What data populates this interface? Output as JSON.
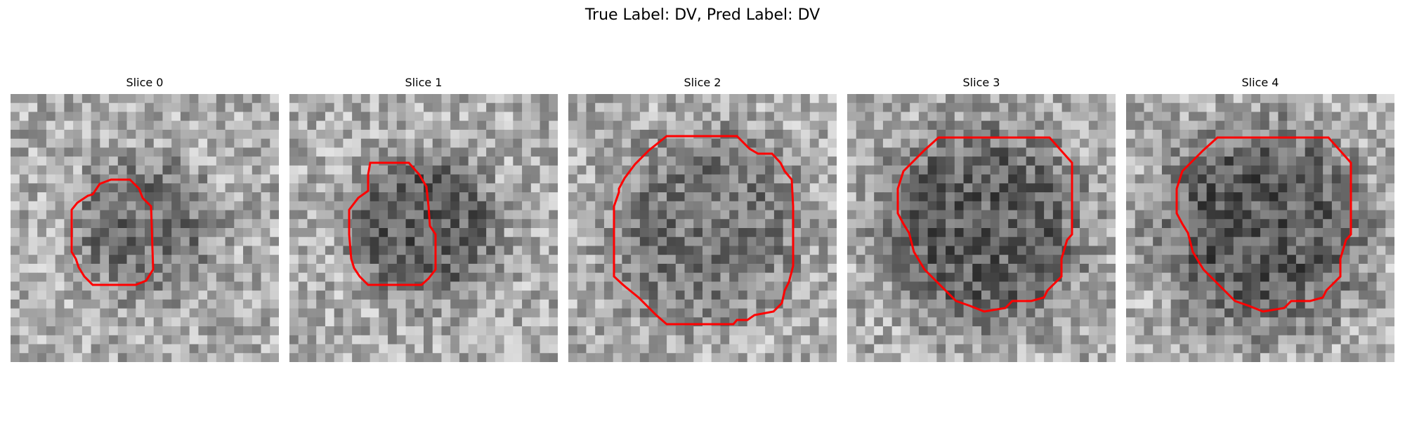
{
  "figure": {
    "title": "True Label: DV, Pred Label: DV",
    "contour_color": "#ff0000",
    "colormap": "gray"
  },
  "slices": [
    {
      "label": "Slice 0"
    },
    {
      "label": "Slice 1"
    },
    {
      "label": "Slice 2"
    },
    {
      "label": "Slice 3"
    },
    {
      "label": "Slice 4"
    }
  ]
}
